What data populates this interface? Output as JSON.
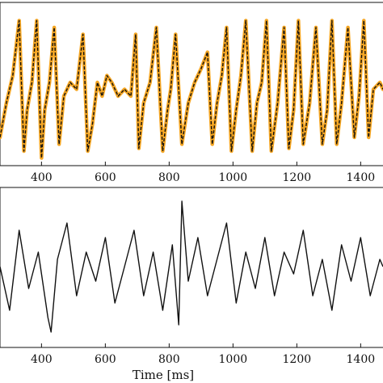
{
  "chart_data": [
    {
      "type": "line",
      "xlabel": "",
      "ylabel": "",
      "xlim": [
        270,
        1470
      ],
      "xticks": [
        400,
        600,
        800,
        1000,
        1200,
        1400
      ],
      "xtick_labels": [
        "400",
        "600",
        "800",
        "1000",
        "1200",
        "1400"
      ],
      "grid": false,
      "series": [
        {
          "style": "orange band with black dashed line",
          "color": "#f5a623",
          "x": [
            270,
            290,
            310,
            330,
            345,
            355,
            370,
            385,
            400,
            410,
            425,
            440,
            455,
            470,
            490,
            510,
            530,
            545,
            560,
            575,
            590,
            605,
            620,
            640,
            660,
            680,
            695,
            705,
            720,
            740,
            760,
            780,
            795,
            805,
            820,
            840,
            860,
            880,
            900,
            920,
            935,
            950,
            965,
            980,
            995,
            1010,
            1025,
            1040,
            1060,
            1075,
            1090,
            1105,
            1120,
            1140,
            1160,
            1175,
            1190,
            1205,
            1220,
            1240,
            1260,
            1280,
            1295,
            1310,
            1325,
            1340,
            1360,
            1380,
            1395,
            1410,
            1425,
            1440,
            1460,
            1470
          ],
          "values": [
            0.1,
            0.35,
            0.55,
            0.95,
            0.0,
            0.3,
            0.5,
            0.95,
            -0.05,
            0.3,
            0.5,
            0.9,
            0.05,
            0.4,
            0.5,
            0.45,
            0.85,
            0.0,
            0.2,
            0.5,
            0.4,
            0.55,
            0.5,
            0.4,
            0.45,
            0.4,
            0.85,
            0.02,
            0.35,
            0.5,
            0.9,
            0.0,
            0.3,
            0.45,
            0.85,
            0.05,
            0.35,
            0.5,
            0.6,
            0.72,
            0.05,
            0.35,
            0.55,
            0.9,
            0.0,
            0.3,
            0.55,
            0.95,
            0.0,
            0.35,
            0.5,
            0.95,
            0.0,
            0.35,
            0.9,
            0.02,
            0.3,
            0.95,
            0.05,
            0.35,
            0.9,
            0.05,
            0.3,
            0.95,
            0.05,
            0.35,
            0.9,
            0.1,
            0.4,
            0.95,
            0.1,
            0.45,
            0.5,
            0.45
          ]
        }
      ]
    },
    {
      "type": "line",
      "xlabel": "Time [ms]",
      "ylabel": "",
      "xlim": [
        270,
        1470
      ],
      "xticks": [
        400,
        600,
        800,
        1000,
        1200,
        1400
      ],
      "xtick_labels": [
        "400",
        "600",
        "800",
        "1000",
        "1200",
        "1400"
      ],
      "grid": false,
      "series": [
        {
          "style": "black noisy trace",
          "color": "#111111",
          "x": [
            270,
            300,
            330,
            360,
            390,
            420,
            430,
            450,
            480,
            510,
            540,
            570,
            600,
            630,
            660,
            690,
            720,
            750,
            780,
            810,
            830,
            840,
            860,
            890,
            920,
            950,
            980,
            1010,
            1040,
            1070,
            1100,
            1130,
            1160,
            1190,
            1220,
            1250,
            1280,
            1310,
            1340,
            1370,
            1400,
            1430,
            1460,
            1470
          ],
          "values": [
            0.5,
            0.2,
            0.75,
            0.35,
            0.6,
            0.15,
            0.05,
            0.55,
            0.8,
            0.3,
            0.6,
            0.4,
            0.7,
            0.25,
            0.5,
            0.75,
            0.3,
            0.6,
            0.2,
            0.65,
            0.1,
            0.95,
            0.4,
            0.7,
            0.3,
            0.55,
            0.8,
            0.25,
            0.6,
            0.35,
            0.7,
            0.3,
            0.6,
            0.45,
            0.75,
            0.3,
            0.55,
            0.2,
            0.65,
            0.4,
            0.7,
            0.3,
            0.55,
            0.5
          ]
        }
      ]
    }
  ]
}
